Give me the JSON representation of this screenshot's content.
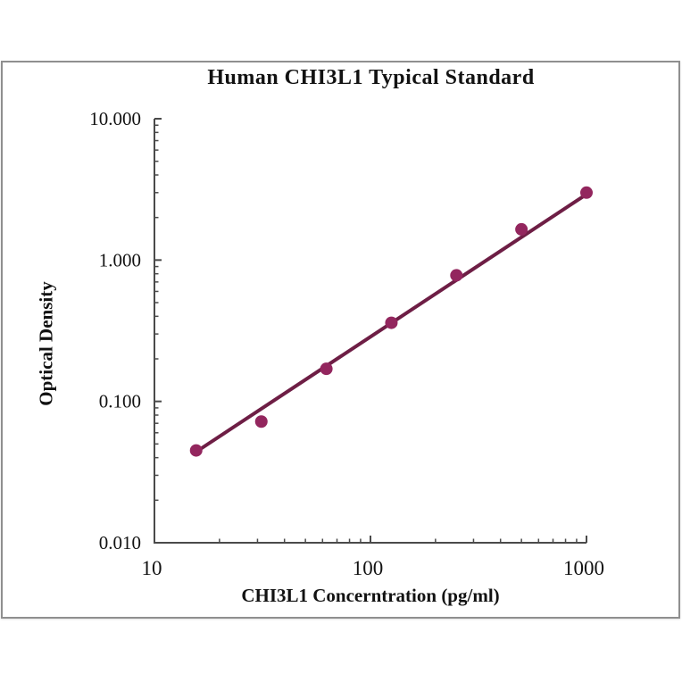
{
  "chart_data": {
    "type": "scatter",
    "title": "Human CHI3L1 Typical Standard",
    "xlabel": "CHI3L1 Concerntration (pg/ml)",
    "ylabel": "Optical Density",
    "x_scale": "log",
    "y_scale": "log",
    "xlim": [
      10,
      1000
    ],
    "ylim": [
      0.01,
      10
    ],
    "grid": false,
    "legend": "none",
    "x_ticks": {
      "values": [
        10,
        100,
        1000
      ],
      "labels": [
        "10",
        "100",
        "1000"
      ]
    },
    "y_ticks": {
      "values": [
        10,
        1,
        0.1,
        0.01
      ],
      "labels": [
        "10.000",
        "1.000",
        "0.100",
        "0.010"
      ]
    },
    "minor_ticks": true,
    "series": [
      {
        "name": "Typical Standard",
        "x": [
          15.6,
          31.25,
          62.5,
          125,
          250,
          500,
          1000
        ],
        "y": [
          0.045,
          0.072,
          0.17,
          0.36,
          0.78,
          1.65,
          3.0
        ]
      }
    ],
    "trend_line": {
      "x": [
        15.6,
        1000
      ],
      "y": [
        0.044,
        2.92
      ]
    },
    "colors": {
      "marker": "#93265E",
      "line": "#6E1E45",
      "axis": "#4a4a4a",
      "text": "#121212",
      "panel_border": "#8f8f8f",
      "background": "#ffffff"
    }
  }
}
